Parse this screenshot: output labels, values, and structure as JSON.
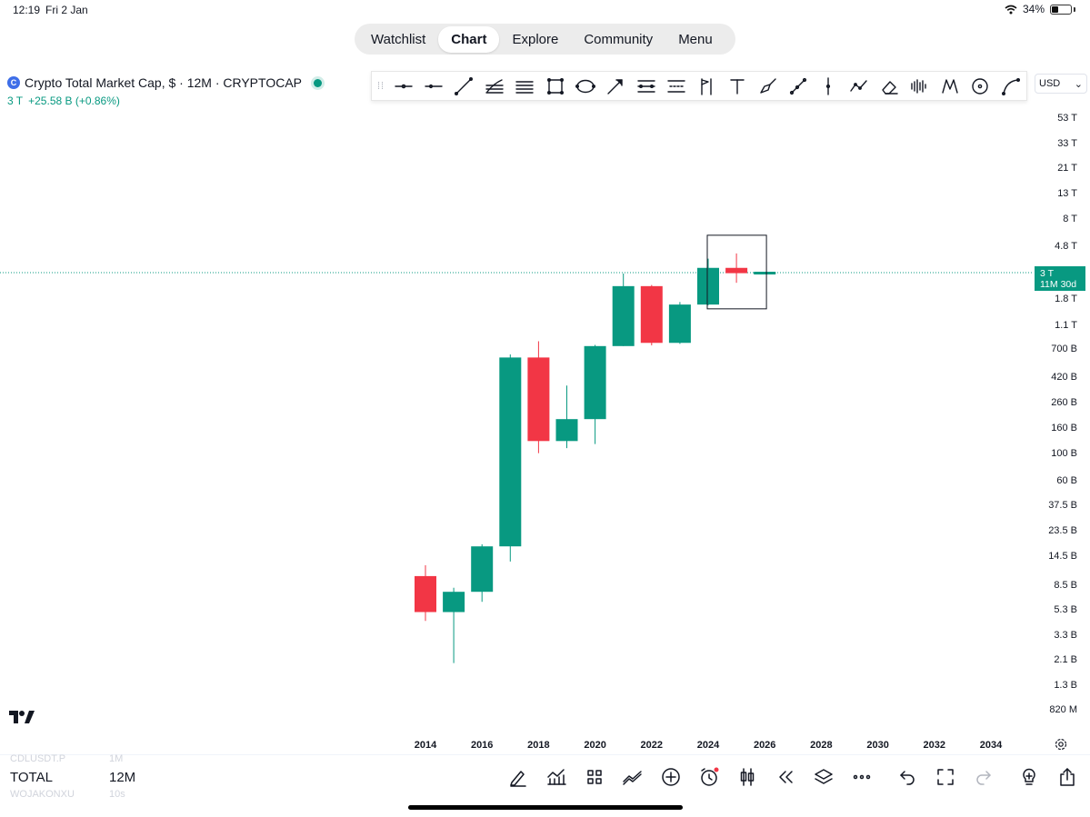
{
  "status_bar": {
    "time": "12:19",
    "date": "Fri 2 Jan",
    "battery": "34%",
    "battery_level": 0.34
  },
  "nav": {
    "tabs": [
      "Watchlist",
      "Chart",
      "Explore",
      "Community",
      "Menu"
    ],
    "active": "Chart"
  },
  "symbol": {
    "icon_letter": "C",
    "title": "Crypto Total Market Cap, $ · 12M · CRYPTOCAP",
    "price": "3 T",
    "change": "+25.58 B (+0.86%)",
    "live_color": "#089981"
  },
  "toolbar": {
    "tools": [
      "cross-line-icon",
      "horizontal-line-icon",
      "trend-line-icon",
      "fib-retracement-icon",
      "parallel-lines-icon",
      "rectangle-icon",
      "ellipse-icon",
      "arrow-icon",
      "price-range-icon",
      "date-range-icon",
      "flag-mark-icon",
      "text-icon",
      "brush-icon",
      "path-icon",
      "vertical-line-icon",
      "zigzag-icon",
      "eraser-icon",
      "volume-profile-icon",
      "xabcd-pattern-icon",
      "circle-target-icon",
      "curve-icon"
    ]
  },
  "currency": {
    "label": "USD"
  },
  "price_axis": {
    "labels": [
      "53 T",
      "33 T",
      "21 T",
      "13 T",
      "8 T",
      "4.8 T",
      "1.8 T",
      "1.1 T",
      "700 B",
      "420 B",
      "260 B",
      "160 B",
      "100 B",
      "60 B",
      "37.5 B",
      "23.5 B",
      "14.5 B",
      "8.5 B",
      "5.3 B",
      "3.3 B",
      "2.1 B",
      "1.3 B",
      "820 M"
    ],
    "last_price": "3 T",
    "countdown": "11M 30d"
  },
  "time_axis": {
    "labels": [
      "2014",
      "2016",
      "2018",
      "2020",
      "2022",
      "2024",
      "2026",
      "2028",
      "2030",
      "2032",
      "2034"
    ]
  },
  "chart_data": {
    "type": "candlestick",
    "scale": "log",
    "interval": "12M",
    "unit": "USD",
    "candles": [
      {
        "x": "2014",
        "open": 10200000000.0,
        "high": 12500000000.0,
        "low": 4400000000.0,
        "close": 5200000000.0
      },
      {
        "x": "2015",
        "open": 5200000000.0,
        "high": 8200000000.0,
        "low": 2000000000.0,
        "close": 7600000000.0
      },
      {
        "x": "2016",
        "open": 7600000000.0,
        "high": 18500000000.0,
        "low": 6300000000.0,
        "close": 17800000000.0
      },
      {
        "x": "2017",
        "open": 17800000000.0,
        "high": 648000000000.0,
        "low": 13400000000.0,
        "close": 612000000000.0
      },
      {
        "x": "2018",
        "open": 612000000000.0,
        "high": 830000000000.0,
        "low": 102000000000.0,
        "close": 128000000000.0
      },
      {
        "x": "2019",
        "open": 128000000000.0,
        "high": 362000000000.0,
        "low": 112000000000.0,
        "close": 193000000000.0
      },
      {
        "x": "2020",
        "open": 193000000000.0,
        "high": 775000000000.0,
        "low": 121000000000.0,
        "close": 758000000000.0
      },
      {
        "x": "2021",
        "open": 758000000000.0,
        "high": 2950000000000.0,
        "low": 758000000000.0,
        "close": 2330000000000.0
      },
      {
        "x": "2022",
        "open": 2330000000000.0,
        "high": 2380000000000.0,
        "low": 768000000000.0,
        "close": 805000000000.0
      },
      {
        "x": "2023",
        "open": 805000000000.0,
        "high": 1730000000000.0,
        "low": 790000000000.0,
        "close": 1650000000000.0
      },
      {
        "x": "2024",
        "open": 1650000000000.0,
        "high": 3900000000000.0,
        "low": 1630000000000.0,
        "close": 3280000000000.0
      },
      {
        "x": "2025",
        "open": 3280000000000.0,
        "high": 4300000000000.0,
        "low": 2480000000000.0,
        "close": 2970000000000.0
      },
      {
        "x": "2026",
        "open": 2970000000000.0,
        "high": 3000000000000.0,
        "low": 2970000000000.0,
        "close": 3000000000000.0
      }
    ],
    "up_color": "#089981",
    "down_color": "#f23645",
    "highlight_box": {
      "from": "2024",
      "to": "2025"
    }
  },
  "bottom_bar": {
    "symbol": "TOTAL",
    "interval": "12M",
    "ghost_above": {
      "symbol": "CDLUSDT.P",
      "interval": "1M"
    },
    "ghost_below": {
      "symbol": "WOJAKONXU",
      "interval": "10s"
    },
    "icons": [
      "drawing-pen-icon",
      "indicators-icon",
      "layout-grid-icon",
      "compare-icon",
      "add-icon",
      "alert-clock-icon",
      "candle-type-icon",
      "replay-icon",
      "layers-icon",
      "more-icon",
      "undo-icon",
      "fullscreen-icon",
      "redo-icon",
      "ideas-bulb-icon",
      "share-icon"
    ]
  }
}
